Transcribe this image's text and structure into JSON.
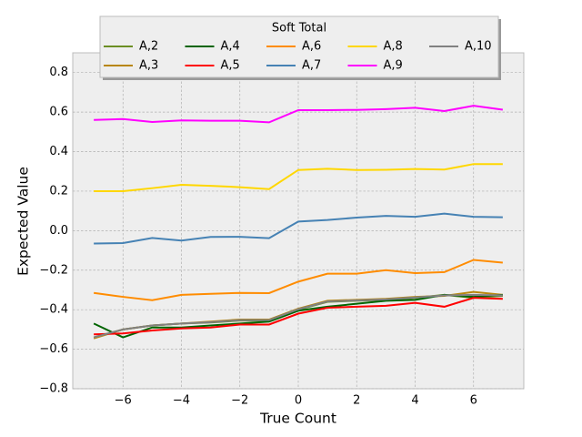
{
  "chart_data": {
    "type": "line",
    "legend_title": "Soft Total",
    "xlabel": "True Count",
    "ylabel": "Expected Value",
    "x": [
      -7,
      -6,
      -5,
      -4,
      -3,
      -2,
      -1,
      0,
      1,
      2,
      3,
      4,
      5,
      6,
      7
    ],
    "xlim": [
      -7.72,
      7.72
    ],
    "xticks": [
      {
        "value": -6,
        "label": "−6"
      },
      {
        "value": -4,
        "label": "−4"
      },
      {
        "value": -2,
        "label": "−2"
      },
      0,
      2,
      4,
      6
    ],
    "ylim": [
      -0.8,
      0.9
    ],
    "yticks": [
      {
        "value": -0.8,
        "label": "−0.8"
      },
      {
        "value": -0.6,
        "label": "−0.6"
      },
      {
        "value": -0.4,
        "label": "−0.4"
      },
      {
        "value": -0.2,
        "label": "−0.2"
      },
      {
        "value": 0,
        "label": "0.0"
      },
      0.2,
      0.4,
      0.6,
      0.8
    ],
    "grid": true,
    "legend": "upper center",
    "series": [
      {
        "name": "A,2",
        "color": "#6b8e23",
        "values": [
          -0.54,
          -0.5,
          -0.48,
          -0.47,
          -0.465,
          -0.455,
          -0.455,
          -0.4,
          -0.36,
          -0.355,
          -0.35,
          -0.34,
          -0.325,
          -0.34,
          -0.33
        ]
      },
      {
        "name": "A,3",
        "color": "#b8860b",
        "values": [
          -0.545,
          -0.5,
          -0.48,
          -0.47,
          -0.46,
          -0.45,
          -0.45,
          -0.395,
          -0.355,
          -0.35,
          -0.345,
          -0.335,
          -0.33,
          -0.31,
          -0.325
        ]
      },
      {
        "name": "A,4",
        "color": "#006400",
        "values": [
          -0.47,
          -0.54,
          -0.49,
          -0.49,
          -0.48,
          -0.47,
          -0.46,
          -0.405,
          -0.385,
          -0.37,
          -0.355,
          -0.35,
          -0.325,
          -0.335,
          -0.325
        ]
      },
      {
        "name": "A,5",
        "color": "#ff0000",
        "values": [
          -0.525,
          -0.52,
          -0.505,
          -0.495,
          -0.49,
          -0.475,
          -0.475,
          -0.42,
          -0.39,
          -0.385,
          -0.38,
          -0.365,
          -0.385,
          -0.34,
          -0.345
        ]
      },
      {
        "name": "A,6",
        "color": "#ff8c00",
        "values": [
          -0.315,
          -0.335,
          -0.352,
          -0.325,
          -0.32,
          -0.315,
          -0.316,
          -0.258,
          -0.218,
          -0.218,
          -0.2,
          -0.215,
          -0.21,
          -0.148,
          -0.162
        ]
      },
      {
        "name": "A,7",
        "color": "#4682b4",
        "values": [
          -0.065,
          -0.063,
          -0.037,
          -0.05,
          -0.032,
          -0.031,
          -0.038,
          0.046,
          0.054,
          0.066,
          0.075,
          0.07,
          0.086,
          0.07,
          0.068
        ]
      },
      {
        "name": "A,8",
        "color": "#ffd700",
        "values": [
          0.2,
          0.2,
          0.215,
          0.232,
          0.227,
          0.22,
          0.21,
          0.307,
          0.313,
          0.307,
          0.308,
          0.312,
          0.309,
          0.337,
          0.337
        ]
      },
      {
        "name": "A,9",
        "color": "#ff00ff",
        "values": [
          0.56,
          0.565,
          0.55,
          0.558,
          0.556,
          0.556,
          0.548,
          0.61,
          0.61,
          0.611,
          0.615,
          0.622,
          0.605,
          0.632,
          0.612
        ]
      },
      {
        "name": "A,10",
        "color": "#808080",
        "values": [
          -0.54,
          -0.5,
          -0.48,
          -0.47,
          -0.463,
          -0.453,
          -0.453,
          -0.398,
          -0.358,
          -0.353,
          -0.348,
          -0.338,
          -0.328,
          -0.325,
          -0.328
        ]
      }
    ]
  }
}
